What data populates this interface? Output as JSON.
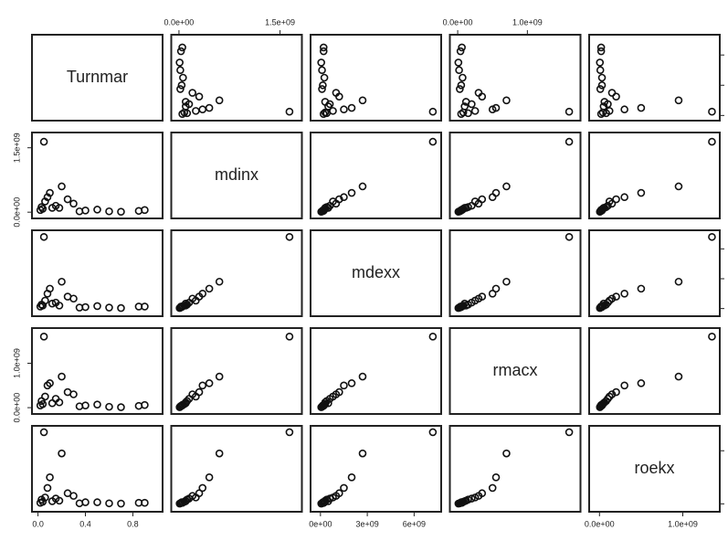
{
  "chart_data": {
    "type": "scatter-matrix",
    "variables": [
      {
        "name": "Turnmar",
        "values": [
          0.05,
          0.12,
          0.02,
          0.3,
          0.6,
          0.85,
          0.2,
          0.08,
          0.04,
          0.15,
          0.4,
          0.7,
          0.25,
          0.1,
          0.03,
          0.5,
          0.35,
          0.06,
          0.9,
          0.18
        ],
        "lim": [
          -0.02,
          1.02
        ],
        "ticks": [
          {
            "value": 0,
            "label": "0.0"
          },
          0.4,
          0.8
        ]
      },
      {
        "name": "mdinx",
        "values": [
          1640000000,
          100000000,
          50000000,
          200000000,
          20000000,
          30000000,
          600000000,
          350000000,
          80000000,
          150000000,
          40000000,
          10000000,
          300000000,
          450000000,
          120000000,
          60000000,
          20000000,
          250000000,
          50000000,
          100000000
        ],
        "lim": [
          -60000000,
          1770000000
        ],
        "ticks": [
          {
            "value": 0,
            "label": "0.0e+00"
          },
          {
            "value": 1500000000,
            "label": "1.5e+09"
          }
        ]
      },
      {
        "name": "mdexx",
        "values": [
          7200000000,
          500000000,
          200000000,
          1000000000,
          100000000,
          200000000,
          2700000000,
          1500000000,
          300000000,
          600000000,
          150000000,
          50000000,
          1200000000,
          2000000000,
          400000000,
          250000000,
          100000000,
          800000000,
          200000000,
          300000000
        ],
        "lim": [
          -400000000,
          7500000000
        ],
        "ticks": [
          {
            "value": 0,
            "label": "0e+00"
          },
          {
            "value": 3000000000,
            "label": "3e+09"
          },
          {
            "value": 6000000000,
            "label": "6e+09"
          }
        ]
      },
      {
        "name": "rmacx",
        "values": [
          1600000000,
          100000000,
          50000000,
          300000000,
          20000000,
          40000000,
          700000000,
          500000000,
          80000000,
          200000000,
          50000000,
          10000000,
          350000000,
          550000000,
          150000000,
          70000000,
          30000000,
          250000000,
          60000000,
          120000000
        ],
        "lim": [
          -60000000,
          1710000000
        ],
        "ticks": [
          {
            "value": 0,
            "label": "0.0e+00"
          },
          {
            "value": 1000000000,
            "label": "1.0e+09"
          }
        ]
      },
      {
        "name": "roekx",
        "values": [
          1350000000,
          50000000,
          20000000,
          150000000,
          10000000,
          20000000,
          950000000,
          300000000,
          40000000,
          100000000,
          30000000,
          5000000,
          200000000,
          500000000,
          80000000,
          30000000,
          10000000,
          120000000,
          20000000,
          60000000
        ],
        "lim": [
          -80000000,
          1400000000
        ],
        "ticks": [
          {
            "value": 0,
            "label": "0.0e+00"
          },
          {
            "value": 1000000000,
            "label": "1.0e+09"
          }
        ]
      }
    ]
  }
}
